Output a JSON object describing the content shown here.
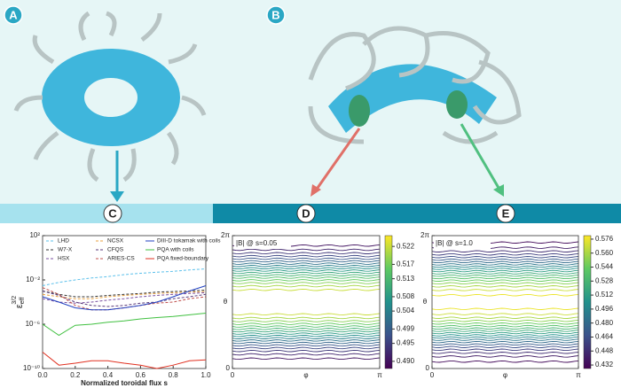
{
  "panel_labels": [
    "A",
    "B",
    "C",
    "D",
    "E"
  ],
  "chart_data": [
    {
      "type": "line",
      "log_y": true,
      "legend": "upper left",
      "xlabel": "Normalized toroidal flux s",
      "ylabel": {
        "base": "ε",
        "sub": "eff",
        "sup": "3/2"
      },
      "xlim": [
        0,
        1
      ],
      "ylim": [
        1e-10,
        100
      ],
      "xticks": [
        {
          "value": 0,
          "label": "0.0"
        },
        0.2,
        0.4,
        0.6,
        0.8,
        {
          "value": 1,
          "label": "1.0"
        }
      ],
      "yticks": [
        {
          "value": 100,
          "label": "10²"
        },
        {
          "value": 0.01,
          "label": "10⁻²"
        },
        {
          "value": 1e-06,
          "label": "10⁻⁶"
        },
        {
          "value": 1e-10,
          "label": "10⁻¹⁰"
        }
      ],
      "x": [
        0,
        0.1,
        0.2,
        0.3,
        0.4,
        0.5,
        0.6,
        0.7,
        0.8,
        0.9,
        1.0
      ],
      "series": [
        {
          "name": "LHD",
          "color": "#5bc0eb",
          "linestyle": "dashed",
          "values": [
            0.003,
            0.006,
            0.01,
            0.015,
            0.02,
            0.03,
            0.04,
            0.05,
            0.06,
            0.08,
            0.1
          ]
        },
        {
          "name": "W7-X",
          "color": "#333333",
          "linestyle": "dashed",
          "values": [
            0.001,
            0.0005,
            0.0003,
            0.0003,
            0.0004,
            0.0005,
            0.0006,
            0.0008,
            0.0009,
            0.001,
            0.0012
          ]
        },
        {
          "name": "HSX",
          "color": "#7a4fa0",
          "linestyle": "dashed",
          "values": [
            0.0002,
            0.0001,
            8e-05,
            0.0001,
            0.00015,
            0.0002,
            0.0003,
            0.0004,
            0.0005,
            0.0006,
            0.0007
          ]
        },
        {
          "name": "NCSX",
          "color": "#e8a040",
          "linestyle": "dashed",
          "values": [
            0.0005,
            0.0003,
            0.0002,
            0.0002,
            0.0003,
            0.0004,
            0.0005,
            0.0006,
            0.0007,
            0.0008,
            0.0009
          ]
        },
        {
          "name": "CFQS",
          "color": "#5a3a7a",
          "linestyle": "dashed",
          "values": [
            0.001,
            0.0004,
            0.0001,
            5e-05,
            4e-05,
            5e-05,
            8e-05,
            0.0001,
            0.0002,
            0.0003,
            0.0005
          ]
        },
        {
          "name": "ARIES-CS",
          "color": "#c0504d",
          "linestyle": "dashed",
          "values": [
            0.002,
            0.0005,
            5e-05,
            2e-05,
            2e-05,
            3e-05,
            5e-05,
            8e-05,
            0.0001,
            0.0002,
            0.0003
          ]
        },
        {
          "name": "DIII-D tokamak with coils",
          "color": "#2040c0",
          "linestyle": "solid",
          "values": [
            0.0003,
            0.0001,
            3e-05,
            2e-05,
            2e-05,
            3e-05,
            5e-05,
            0.0001,
            0.0003,
            0.001,
            0.003
          ]
        },
        {
          "name": "PQA with coils",
          "color": "#40c040",
          "linestyle": "solid",
          "values": [
            1e-06,
            1e-07,
            8e-07,
            1e-06,
            1.5e-06,
            2e-06,
            3e-06,
            4e-06,
            5e-06,
            7e-06,
            1e-05
          ]
        },
        {
          "name": "PQA fixed-boundary",
          "color": "#e03020",
          "linestyle": "solid",
          "values": [
            3e-09,
            2e-10,
            3e-10,
            5e-10,
            5e-10,
            3e-10,
            2e-10,
            1e-10,
            2e-10,
            5e-10,
            6e-10
          ]
        }
      ]
    },
    {
      "type": "contour",
      "colormap": "viridis",
      "title": "|B| @ s=0.05",
      "xlabel": "φ",
      "ylabel": "θ",
      "xlim": [
        0,
        3.14159
      ],
      "ylim": [
        0,
        6.28319
      ],
      "xticks": [
        0,
        {
          "value": 3.14159,
          "label": "π"
        }
      ],
      "yticks": [
        0,
        {
          "value": 6.28319,
          "label": "2π"
        }
      ],
      "clim": [
        0.488,
        0.525
      ],
      "cticks": [
        {
          "value": 0.49,
          "label": "0.490"
        },
        0.495,
        0.499,
        0.504,
        0.508,
        0.513,
        0.517,
        0.522
      ],
      "levels": [
        0.49,
        0.492,
        0.494,
        0.496,
        0.498,
        0.5,
        0.502,
        0.504,
        0.506,
        0.508,
        0.51,
        0.512,
        0.514,
        0.516,
        0.518,
        0.52,
        0.522
      ]
    },
    {
      "type": "contour",
      "colormap": "viridis",
      "title": "|B| @ s=1.0",
      "xlabel": "φ",
      "ylabel": "θ",
      "xlim": [
        0,
        3.14159
      ],
      "ylim": [
        0,
        6.28319
      ],
      "xticks": [
        0,
        {
          "value": 3.14159,
          "label": "π"
        }
      ],
      "yticks": [
        0,
        {
          "value": 6.28319,
          "label": "2π"
        }
      ],
      "clim": [
        0.428,
        0.58
      ],
      "cticks": [
        0.432,
        0.448,
        0.464,
        {
          "value": 0.48,
          "label": "0.480"
        },
        0.496,
        0.512,
        0.528,
        0.544,
        {
          "value": 0.56,
          "label": "0.560"
        },
        0.576
      ],
      "levels": [
        0.432,
        0.44,
        0.448,
        0.456,
        0.464,
        0.472,
        0.48,
        0.488,
        0.496,
        0.504,
        0.512,
        0.52,
        0.528,
        0.536,
        0.544,
        0.552,
        0.56,
        0.568,
        0.576
      ]
    }
  ]
}
